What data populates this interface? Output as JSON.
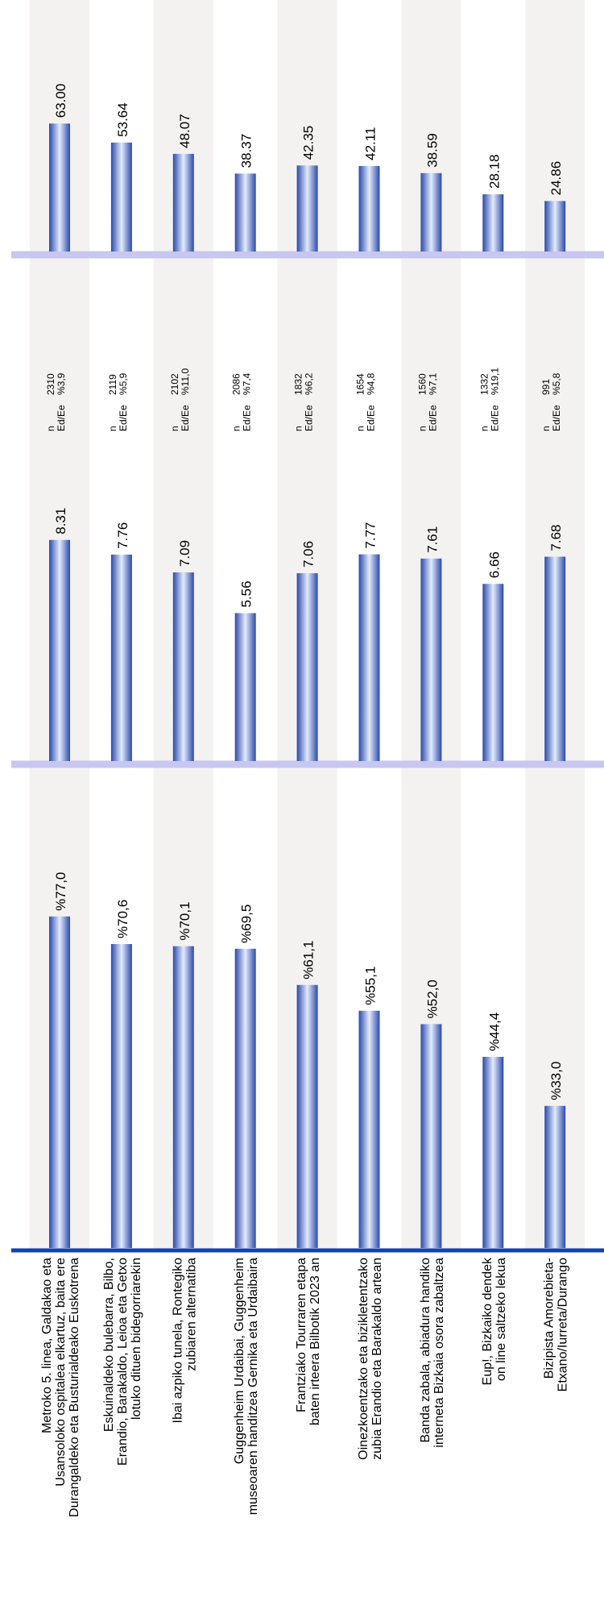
{
  "chart_data": {
    "type": "bar",
    "categories": [
      [
        "Metroko 5. linea, Galdakao eta",
        "Usansoloko ospitalea elkartuz, baita ere",
        "Durangaldeko eta Busturialdeako Euskotrena"
      ],
      [
        "Eskuinaldeko bulebarra, Bilbo,",
        "Erandio, Barakaldo, Leioa eta Getxo",
        "lotuko dituen bidegorriarekin"
      ],
      [
        "Ibai azpiko tunela, Rontegiko",
        "zubiaren alternatiba"
      ],
      [
        "Guggenheim Urdaibai, Guggenheim",
        "museoaren handitzea Gernika eta Urdaibaira"
      ],
      [
        "Frantziako Tourraren etapa",
        "baten irteera Bilbotik 2023 an"
      ],
      [
        "Oinezkoentzako eta bizikletentzako",
        "zubia Erandio eta Barakaldo artean"
      ],
      [
        "Banda zabala, abiadura handiko",
        "interneta Bizkaia osora zabaltzea"
      ],
      [
        "Eup!, Bizkaiko dendek",
        "on line saltzeko lekua"
      ],
      [
        "Bizipista Amorebieta-",
        "Etxano/Iurreta/Durango"
      ]
    ],
    "panels": [
      {
        "name": "percent",
        "values": [
          77.0,
          70.6,
          70.1,
          69.5,
          61.1,
          55.1,
          52.0,
          44.4,
          33.0
        ],
        "labels": [
          "%77,0",
          "%70,6",
          "%70,1",
          "%69,5",
          "%61,1",
          "%55,1",
          "%52,0",
          "%44,4",
          "%33,0"
        ],
        "range": [
          0,
          100
        ]
      },
      {
        "name": "score",
        "values": [
          8.31,
          7.76,
          7.09,
          5.56,
          7.06,
          7.77,
          7.61,
          6.66,
          7.68
        ],
        "labels": [
          "8.31",
          "7.76",
          "7.09",
          "5.56",
          "7.06",
          "7.77",
          "7.61",
          "6.66",
          "7.68"
        ],
        "range": [
          0,
          10
        ]
      },
      {
        "name": "index",
        "values": [
          63.0,
          53.64,
          48.07,
          38.37,
          42.35,
          42.11,
          38.59,
          28.18,
          24.86
        ],
        "labels": [
          "63.00",
          "53.64",
          "48.07",
          "38.37",
          "42.35",
          "42.11",
          "38.59",
          "28.18",
          "24.86"
        ],
        "range": [
          0,
          100
        ]
      }
    ],
    "stats": {
      "n_label": "n",
      "err_label": "Ed/Ee",
      "n": [
        "2310",
        "2119",
        "2102",
        "2086",
        "1832",
        "1654",
        "1560",
        "1332",
        "991"
      ],
      "err": [
        "%3,9",
        "%5,9",
        "%11,0",
        "%7,4",
        "%6,2",
        "%4,8",
        "%7,1",
        "%19,1",
        "%5,8"
      ]
    },
    "colors": {
      "bar_dark": "#2a4aa8",
      "bar_light": "#e4ebff",
      "band": "#f4f1f1",
      "axis_main": "#0c44b8",
      "axis_divider": "#c7c7f2"
    },
    "orientation": "rotated-90-ccw",
    "grid": false,
    "legend": "none"
  }
}
